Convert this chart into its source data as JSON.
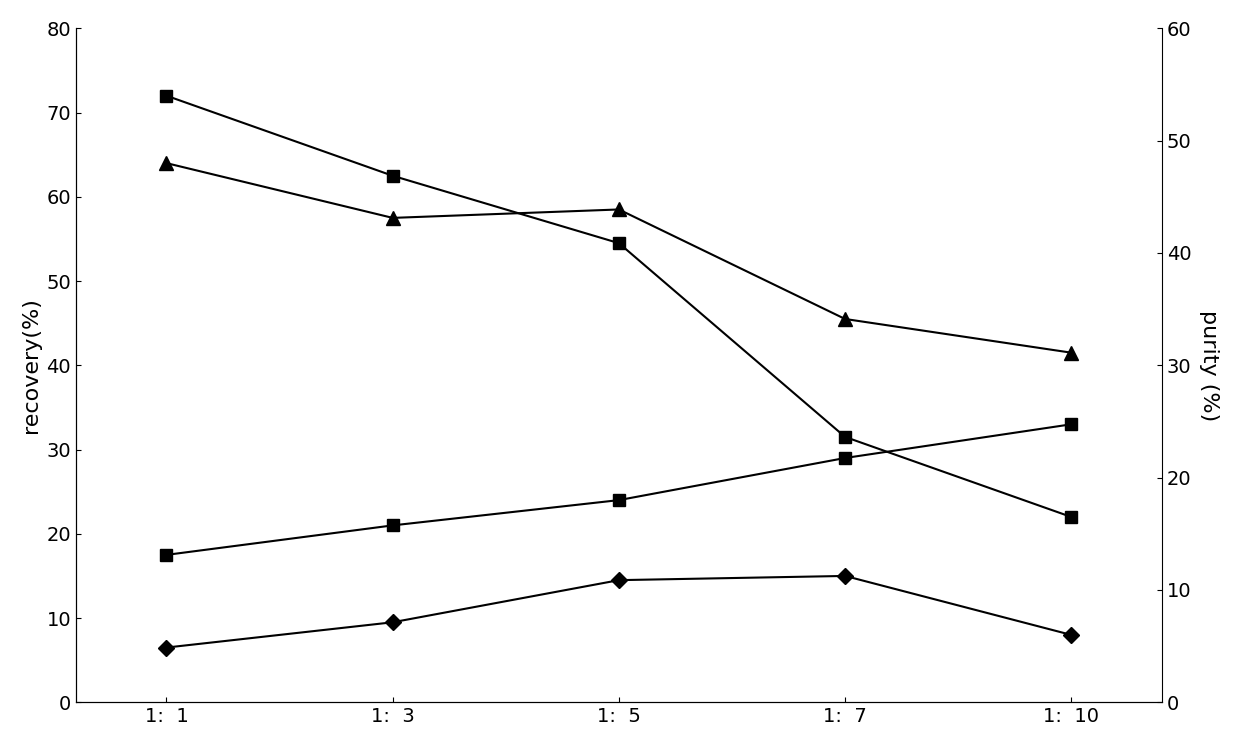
{
  "x_labels": [
    "1:  1",
    "1:  3",
    "1:  5",
    "1:  7",
    "1:  10"
  ],
  "x_positions": [
    0,
    1,
    2,
    3,
    4
  ],
  "series": [
    {
      "name": "purity_square",
      "marker": "s",
      "color": "#000000",
      "linewidth": 1.5,
      "markersize": 9,
      "y": [
        72.0,
        62.5,
        54.5,
        31.5,
        22.0
      ]
    },
    {
      "name": "purity_triangle",
      "marker": "^",
      "color": "#000000",
      "linewidth": 1.5,
      "markersize": 10,
      "y": [
        64.0,
        57.5,
        58.5,
        45.5,
        41.5
      ]
    },
    {
      "name": "recovery_square",
      "marker": "s",
      "color": "#000000",
      "linewidth": 1.5,
      "markersize": 9,
      "y": [
        17.5,
        21.0,
        24.0,
        29.0,
        33.0
      ]
    },
    {
      "name": "recovery_diamond",
      "marker": "D",
      "color": "#000000",
      "linewidth": 1.5,
      "markersize": 8,
      "y": [
        6.5,
        9.5,
        14.5,
        15.0,
        8.0
      ]
    }
  ],
  "ylabel_left": "recovery(%)",
  "ylabel_right": "purity (%)",
  "ylim_left": [
    0,
    80
  ],
  "ylim_right": [
    0,
    60
  ],
  "yticks_left": [
    0,
    10,
    20,
    30,
    40,
    50,
    60,
    70,
    80
  ],
  "yticks_right": [
    0,
    10,
    20,
    30,
    40,
    50,
    60
  ],
  "background_color": "#ffffff",
  "figsize": [
    12.4,
    7.47
  ],
  "dpi": 100,
  "tick_fontsize": 14,
  "label_fontsize": 16
}
